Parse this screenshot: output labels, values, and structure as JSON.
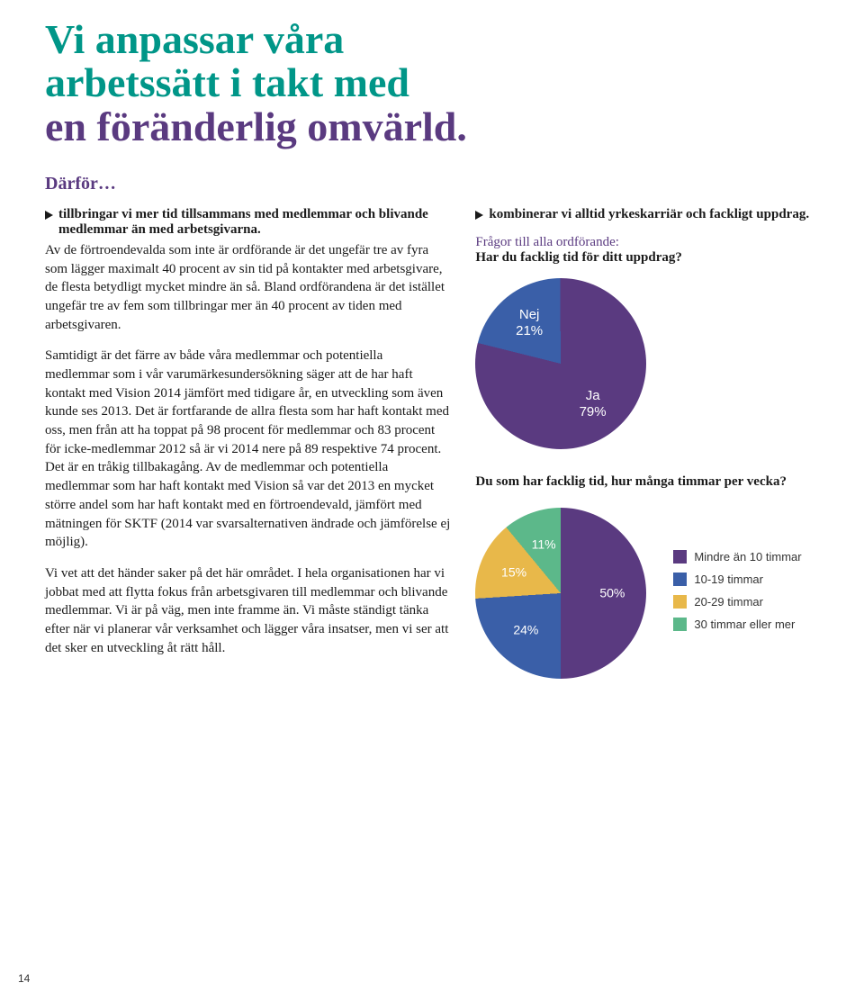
{
  "title": {
    "line1": "Vi anpassar våra",
    "line2": "arbetssätt i takt med",
    "line3": "en föränderlig omvärld.",
    "fontsize": 46,
    "color_line12": "#009688",
    "color_line3": "#5a3a80"
  },
  "subtitle": {
    "text": "Därför…",
    "fontsize": 20,
    "color": "#5a3a80"
  },
  "left": {
    "bullet": "tillbringar vi mer tid tillsammans med medlemmar och blivande medlemmar än med arbetsgivarna.",
    "para1": "Av de förtroendevalda som inte är ordförande är det ungefär tre av fyra som lägger maximalt 40 procent av sin tid på kontakter med arbetsgivare, de flesta betydligt mycket mindre än så. Bland ordförandena är det istället ungefär tre av fem som tillbringar mer än 40 procent av tiden med arbetsgivaren.",
    "para2": "Samtidigt är det färre av både våra medlemmar och potentiella medlemmar som i vår varumärkesundersökning säger att de har haft kontakt med Vision 2014 jämfört med tidigare år, en utveckling som även kunde ses 2013. Det är fortfarande de allra flesta som har haft kontakt med oss, men från att ha toppat på 98 procent för medlemmar och 83 procent för icke-medlemmar 2012 så är vi 2014 nere på 89 respektive 74 procent. Det är en tråkig tillbakagång. Av de medlemmar och potentiella medlemmar som har haft kontakt med Vision så var det 2013 en mycket större andel som har haft kontakt med en förtroendevald, jämfört med mätningen för SKTF (2014 var svarsalternativen ändrade och jämförelse ej möjlig).",
    "para3": "Vi vet att det händer saker på det här området. I hela organisationen har vi jobbat med att flytta fokus från arbetsgivaren till medlemmar och blivande medlemmar. Vi är på väg, men inte framme än. Vi måste ständigt tänka efter när vi planerar vår verksamhet och lägger våra insatser, men vi ser att det sker en utveckling åt rätt håll.",
    "body_fontsize": 15
  },
  "right": {
    "bullet": "kombinerar vi alltid yrkeskarriär och fackligt uppdrag.",
    "q1_label": "Frågor till alla ordförande:",
    "q1_text": "Har du facklig tid för ditt uppdrag?",
    "q2_text": "Du som har facklig tid, hur många timmar per vecka?"
  },
  "chart1": {
    "type": "pie",
    "size": 190,
    "background": "#ffffff",
    "slices": [
      {
        "label": "Nej",
        "value": 21,
        "pct_text": "21%",
        "color": "#3a5fa8"
      },
      {
        "label": "Ja",
        "value": 79,
        "pct_text": "79%",
        "color": "#5a3a80"
      }
    ],
    "label_fontsize": 15,
    "label_color": "#ffffff"
  },
  "chart2": {
    "type": "pie",
    "size": 190,
    "background": "#ffffff",
    "slices": [
      {
        "label": "Mindre än 10 timmar",
        "value": 50,
        "pct_text": "50%",
        "color": "#5a3a80"
      },
      {
        "label": "10-19 timmar",
        "value": 24,
        "pct_text": "24%",
        "color": "#3a5fa8"
      },
      {
        "label": "20-29 timmar",
        "value": 15,
        "pct_text": "15%",
        "color": "#e8b84a"
      },
      {
        "label": "30 timmar eller mer",
        "value": 11,
        "pct_text": "11%",
        "color": "#5cb88a"
      }
    ],
    "label_fontsize": 14,
    "label_color": "#ffffff",
    "legend_fontsize": 13,
    "legend_color": "#333333"
  },
  "page_number": "14",
  "page_number_fontsize": 12
}
